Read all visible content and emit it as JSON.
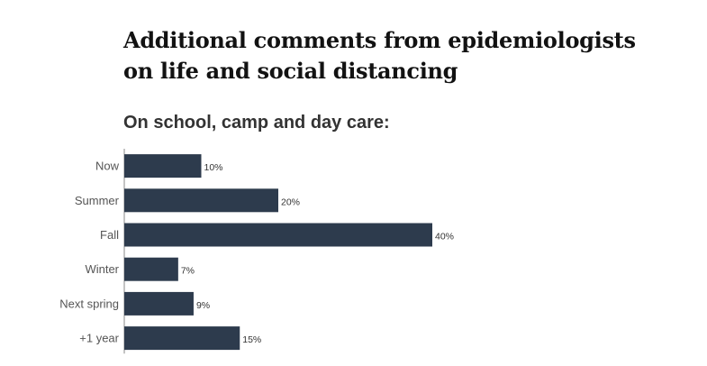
{
  "header": {
    "title": "Additional comments from epidemiologists on life and social distancing"
  },
  "colors": {
    "bar": "#2d3b4d",
    "axis": "#888888"
  },
  "chart_data": {
    "type": "bar",
    "orientation": "horizontal",
    "title": "On school, camp and day care:",
    "categories": [
      "Now",
      "Summer",
      "Fall",
      "Winter",
      "Next spring",
      "+1 year"
    ],
    "values": [
      10,
      20,
      40,
      7,
      9,
      15
    ],
    "value_labels": [
      "10%",
      "20%",
      "40%",
      "7%",
      "9%",
      "15%"
    ],
    "xlim": [
      0,
      40
    ],
    "grid": false,
    "legend": "none"
  }
}
